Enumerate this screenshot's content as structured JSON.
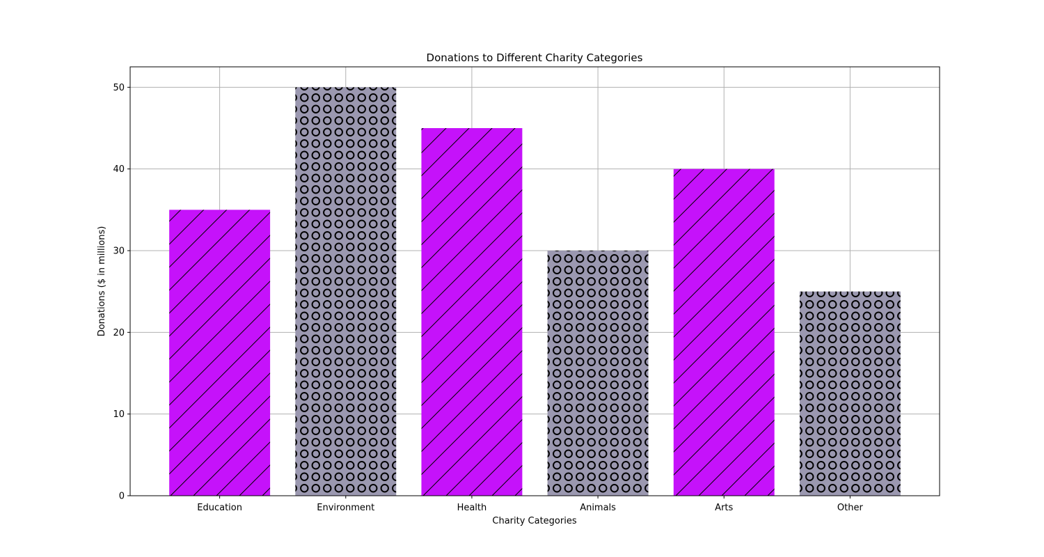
{
  "chart_data": {
    "type": "bar",
    "title": "Donations to Different Charity Categories",
    "xlabel": "Charity Categories",
    "ylabel": "Donations ($ in millions)",
    "categories": [
      "Education",
      "Environment",
      "Health",
      "Animals",
      "Arts",
      "Other"
    ],
    "values": [
      35,
      50,
      45,
      30,
      40,
      25
    ],
    "bar_colors": [
      "#c512fa",
      "#9b98b0",
      "#c512fa",
      "#9b98b0",
      "#c512fa",
      "#9b98b0"
    ],
    "bar_hatch": [
      "diagonal",
      "circles",
      "diagonal",
      "circles",
      "diagonal",
      "circles"
    ],
    "ylim": [
      0,
      52.5
    ],
    "yticks": [
      0,
      10,
      20,
      30,
      40,
      50
    ],
    "ytick_labels": [
      "0",
      "10",
      "20",
      "30",
      "40",
      "50"
    ],
    "grid": true,
    "grid_color": "#b0b0b0"
  }
}
